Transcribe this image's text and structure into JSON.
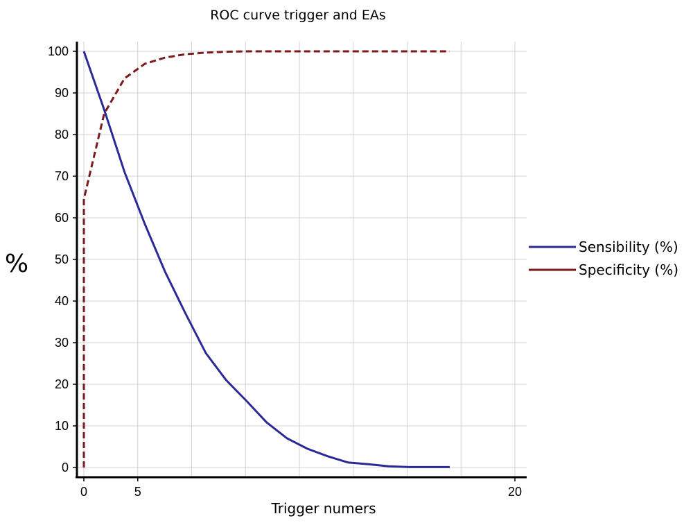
{
  "chart_data": {
    "type": "line",
    "title": "ROC curve trigger and EAs",
    "xlabel": "Trigger numers",
    "ylabel": "%",
    "xlim": [
      0,
      20
    ],
    "ylim": [
      0,
      100
    ],
    "x_tick_labels": [
      "0",
      "5",
      "20"
    ],
    "y_tick_labels": [
      "0",
      "10",
      "20",
      "30",
      "40",
      "50",
      "60",
      "70",
      "80",
      "90",
      "100"
    ],
    "grid": true,
    "legend_position": "right",
    "series": [
      {
        "name": "Sensibility (%)",
        "color": "#2a2a96",
        "line_style": "solid",
        "x": [
          0,
          1,
          2,
          3,
          4,
          5,
          6,
          7,
          8,
          9,
          10,
          11,
          12,
          13,
          14,
          15,
          16,
          17,
          18
        ],
        "y": [
          100,
          86,
          71,
          58.5,
          47,
          37,
          27.5,
          21,
          16,
          10.8,
          7,
          4.5,
          2.7,
          1.2,
          0.8,
          0.3,
          0.1,
          0.1,
          0.1
        ]
      },
      {
        "name": "Specificity (%)",
        "color": "#7a1a1a",
        "line_style": "dashed",
        "x": [
          0,
          0,
          1,
          2,
          3,
          4,
          5,
          6,
          7,
          8,
          9,
          10,
          11,
          12,
          13,
          14,
          15,
          16,
          17,
          18
        ],
        "y": [
          0,
          64.5,
          85,
          93.5,
          97,
          98.5,
          99.3,
          99.7,
          99.9,
          100,
          100,
          100,
          100,
          100,
          100,
          100,
          100,
          100,
          100,
          100
        ]
      }
    ]
  }
}
